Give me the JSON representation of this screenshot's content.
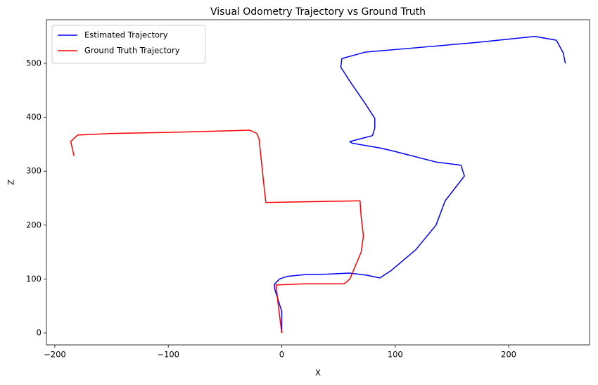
{
  "chart_data": {
    "type": "line",
    "title": "Visual Odometry Trajectory vs Ground Truth",
    "x_label": "X",
    "y_label": "Z",
    "xlim": [
      -207.4,
      271.3
    ],
    "ylim": [
      -22.2,
      581
    ],
    "xticks": [
      {
        "value": -200,
        "label": "−200"
      },
      {
        "value": -100,
        "label": "−100"
      },
      0,
      100,
      200
    ],
    "yticks": [
      0,
      100,
      200,
      300,
      400,
      500
    ],
    "grid": false,
    "legend": "upper left",
    "series": [
      {
        "name": "Estimated Trajectory",
        "color": "#0000ff",
        "x": [
          0,
          0,
          -3,
          -6,
          -6.5,
          -2,
          5,
          20,
          40,
          60,
          75,
          86.5,
          96,
          118,
          136,
          144,
          161,
          158,
          136,
          99,
          86.5,
          62,
          60,
          80,
          82,
          82,
          74,
          60,
          52,
          53,
          74,
          124,
          173,
          223,
          242,
          248,
          250
        ],
        "values": [
          0,
          40,
          60,
          80,
          90,
          100,
          105,
          108,
          109,
          111,
          107,
          102,
          115,
          154,
          200,
          245,
          291,
          311,
          317,
          337,
          343,
          352,
          355,
          366,
          380,
          398,
          424,
          467,
          493,
          509,
          521,
          530,
          539,
          550,
          543,
          520,
          500
        ]
      },
      {
        "name": "Ground Truth Trajectory",
        "color": "#ff0000",
        "x": [
          0,
          -3,
          -5,
          20,
          55,
          60,
          70,
          72,
          70,
          69,
          40,
          -14,
          -15,
          -18,
          -20,
          -22,
          -28,
          -100,
          -150,
          -180,
          -186,
          -183
        ],
        "values": [
          0,
          50,
          89,
          91,
          91,
          100,
          150,
          180,
          215,
          245,
          244,
          242,
          260,
          320,
          360,
          370,
          376,
          372,
          370,
          367,
          355,
          328
        ]
      }
    ]
  }
}
